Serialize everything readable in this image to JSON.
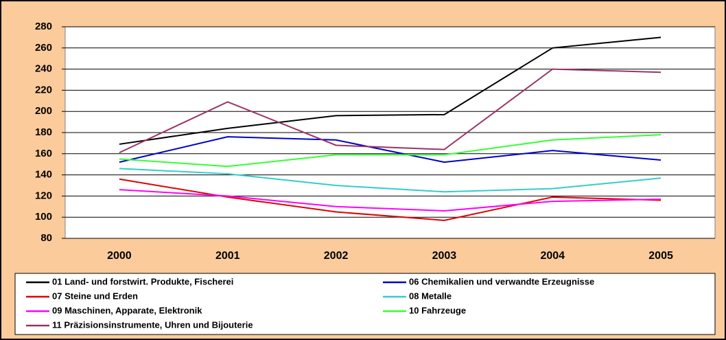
{
  "chart_data": {
    "type": "line",
    "categories": [
      "2000",
      "2001",
      "2002",
      "2003",
      "2004",
      "2005"
    ],
    "series": [
      {
        "name": "01 Land- und forstwirt. Produkte, Fischerei",
        "color": "#000000",
        "values": [
          169,
          184,
          196,
          197,
          260,
          270
        ]
      },
      {
        "name": "06 Chemikalien und verwandte Erzeugnisse",
        "color": "#0000CC",
        "values": [
          152,
          176,
          173,
          152,
          163,
          154
        ]
      },
      {
        "name": "07 Steine und Erden",
        "color": "#E00000",
        "values": [
          136,
          119,
          105,
          97,
          119,
          116
        ]
      },
      {
        "name": "08 Metalle",
        "color": "#33CCCC",
        "values": [
          146,
          141,
          130,
          124,
          127,
          137
        ]
      },
      {
        "name": "09 Maschinen, Apparate, Elektronik",
        "color": "#FF00FF",
        "values": [
          126,
          120,
          110,
          106,
          115,
          117
        ]
      },
      {
        "name": "10 Fahrzeuge",
        "color": "#33FF33",
        "values": [
          155,
          148,
          159,
          159,
          173,
          178
        ]
      },
      {
        "name": "11 Präzisionsinstrumente, Uhren und Bijouterie",
        "color": "#993366",
        "values": [
          161,
          209,
          168,
          164,
          240,
          237
        ]
      }
    ],
    "ylim": [
      80,
      280
    ],
    "yticks": [
      80,
      100,
      120,
      140,
      160,
      180,
      200,
      220,
      240,
      260,
      280
    ],
    "grid": true
  }
}
